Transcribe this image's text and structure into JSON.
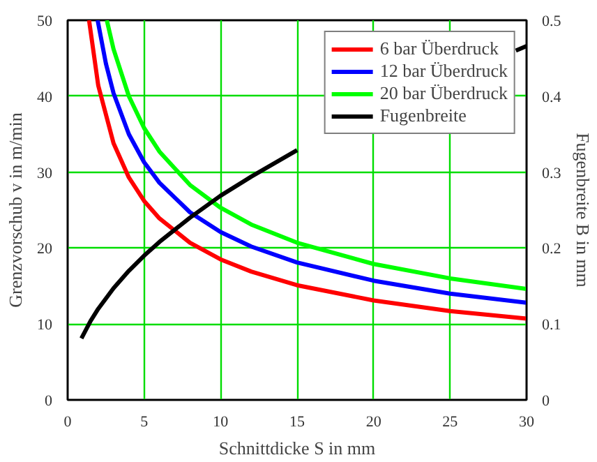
{
  "chart_data": {
    "type": "line",
    "xlabel": "Schnittdicke S in mm",
    "ylabel": "Grenzvorschub v in m/min",
    "y2label": "Fugenbreite B in mm",
    "xlim": [
      0,
      30
    ],
    "xticks": [
      0,
      5,
      10,
      15,
      20,
      25,
      30
    ],
    "ylim": [
      0,
      50
    ],
    "yticks": [
      0,
      10,
      20,
      30,
      40,
      50
    ],
    "y2lim": [
      0,
      0.5
    ],
    "y2ticks": [
      0,
      0.1,
      0.2,
      0.3,
      0.4,
      0.5
    ],
    "grid": true,
    "legend": "top right",
    "line_style": "solid",
    "marker": "none",
    "series": [
      {
        "name": "6 bar Überdruck",
        "color": "#ff0000",
        "x": [
          1.4,
          2,
          3,
          4,
          5,
          6,
          8,
          10,
          12,
          15,
          20,
          25,
          30
        ],
        "values": [
          50,
          41.4,
          33.8,
          29.3,
          26.2,
          23.9,
          20.7,
          18.5,
          16.9,
          15.1,
          13.1,
          11.7,
          10.7
        ]
      },
      {
        "name": "12 bar Überdruck",
        "color": "#0000ff",
        "x": [
          1.96,
          2.5,
          3,
          4,
          5,
          6,
          8,
          10,
          12,
          15,
          20,
          25,
          30
        ],
        "values": [
          50,
          44.3,
          40.4,
          35,
          31.3,
          28.6,
          24.7,
          22.1,
          20.2,
          18.1,
          15.7,
          14,
          12.8
        ]
      },
      {
        "name": "20 bar Überdruck",
        "color": "#00ff00",
        "x": [
          2.56,
          3,
          4,
          5,
          6,
          8,
          10,
          12,
          15,
          20,
          25,
          30
        ],
        "values": [
          50,
          46.2,
          40,
          35.8,
          32.7,
          28.3,
          25.3,
          23.1,
          20.7,
          17.9,
          16,
          14.6
        ]
      },
      {
        "name": "Fugenbreite",
        "color": "#000000",
        "axis": "y2",
        "x": [
          0.9,
          1.5,
          2,
          3,
          4,
          5,
          6,
          8,
          10,
          12,
          15,
          20,
          25,
          29.3,
          30
        ],
        "values": [
          0.081,
          0.104,
          0.12,
          0.147,
          0.17,
          0.19,
          0.208,
          0.24,
          0.269,
          0.294,
          0.329,
          null,
          null,
          0.46,
          0.466
        ]
      }
    ]
  }
}
